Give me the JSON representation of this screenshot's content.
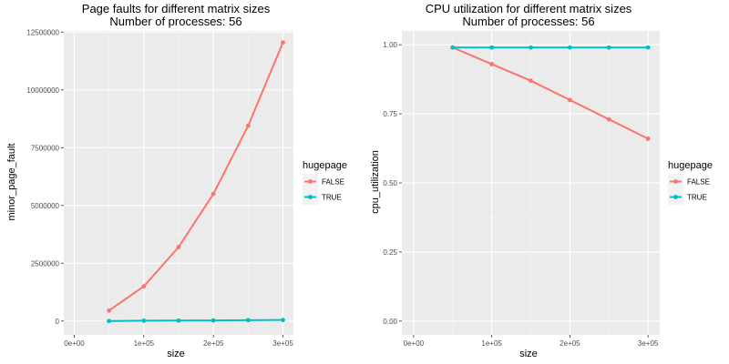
{
  "chart_data": [
    {
      "type": "line",
      "title": "Page faults for different matrix sizes",
      "subtitle": "Number of processes: 56",
      "xlabel": "size",
      "ylabel": "minor_page_fault",
      "x": [
        50000,
        100000,
        150000,
        200000,
        250000,
        300000
      ],
      "x_ticks": [
        0,
        100000,
        200000,
        300000
      ],
      "x_tick_labels": [
        "0e+00",
        "1e+05",
        "2e+05",
        "3e+05"
      ],
      "xlim": [
        -15000,
        315000
      ],
      "y_ticks": [
        0,
        2500000,
        5000000,
        7500000,
        10000000,
        12500000
      ],
      "y_tick_labels": [
        "0",
        "2500000",
        "5000000",
        "7500000",
        "10000000",
        "12500000"
      ],
      "ylim": [
        -600000,
        12550000
      ],
      "grid": true,
      "legend": {
        "title": "hugepage",
        "placement": "right"
      },
      "series": [
        {
          "name": "FALSE",
          "color": "#F8766D",
          "values": [
            450000,
            1500000,
            3200000,
            5500000,
            8450000,
            12050000
          ]
        },
        {
          "name": "TRUE",
          "color": "#00BFC4",
          "values": [
            0,
            15000,
            20000,
            25000,
            35000,
            45000
          ]
        }
      ]
    },
    {
      "type": "line",
      "title": "CPU utilization for different matrix sizes",
      "subtitle": "Number of processes: 56",
      "xlabel": "size",
      "ylabel": "cpu_utilization",
      "x": [
        50000,
        100000,
        150000,
        200000,
        250000,
        300000
      ],
      "x_ticks": [
        0,
        100000,
        200000,
        300000
      ],
      "x_tick_labels": [
        "0e+00",
        "1e+05",
        "2e+05",
        "3e+05"
      ],
      "xlim": [
        -15000,
        315000
      ],
      "y_ticks": [
        0,
        0.25,
        0.5,
        0.75,
        1.0
      ],
      "y_tick_labels": [
        "0.00",
        "0.25",
        "0.50",
        "0.75",
        "1.00"
      ],
      "ylim": [
        -0.05,
        1.05
      ],
      "grid": true,
      "legend": {
        "title": "hugepage",
        "placement": "right"
      },
      "series": [
        {
          "name": "FALSE",
          "color": "#F8766D",
          "values": [
            0.99,
            0.93,
            0.87,
            0.8,
            0.73,
            0.66
          ]
        },
        {
          "name": "TRUE",
          "color": "#00BFC4",
          "values": [
            0.99,
            0.99,
            0.99,
            0.99,
            0.99,
            0.99
          ]
        }
      ]
    }
  ]
}
